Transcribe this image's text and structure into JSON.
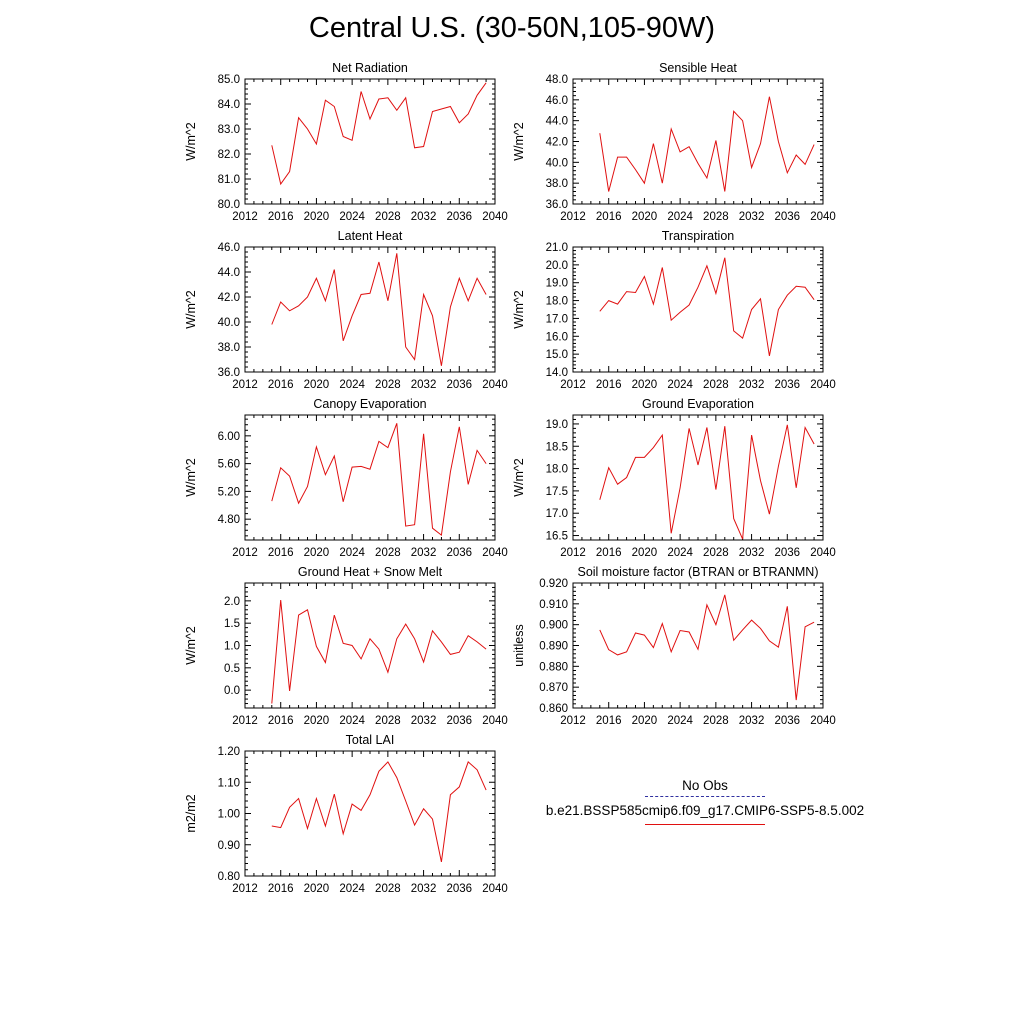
{
  "figure": {
    "title": "Central U.S. (30-50N,105-90W)"
  },
  "legend": {
    "obs_label": "No Obs",
    "series_label": "b.e21.BSSP585cmip6.f09_g17.CMIP6-SSP5-8.5.002",
    "obs_color": "#3030a0",
    "series_color": "#e01010"
  },
  "chart_data": [
    {
      "type": "line",
      "title": "Net Radiation",
      "ylabel": "W/m^2",
      "xlim": [
        2012,
        2040
      ],
      "ylim": [
        80.0,
        85.0
      ],
      "xticks": [
        "2012",
        "2016",
        "2020",
        "2024",
        "2028",
        "2032",
        "2036",
        "2040"
      ],
      "yticks": [
        "80.0",
        "81.0",
        "82.0",
        "83.0",
        "84.0",
        "85.0"
      ],
      "x": [
        2015,
        2016,
        2017,
        2018,
        2019,
        2020,
        2021,
        2022,
        2023,
        2024,
        2025,
        2026,
        2027,
        2028,
        2029,
        2030,
        2031,
        2032,
        2033,
        2034,
        2035,
        2036,
        2037,
        2038,
        2039
      ],
      "y": [
        82.35,
        80.8,
        81.3,
        83.45,
        83.0,
        82.4,
        84.15,
        83.9,
        82.7,
        82.55,
        84.5,
        83.4,
        84.2,
        84.25,
        83.75,
        84.25,
        82.25,
        82.3,
        83.7,
        83.8,
        83.9,
        83.25,
        83.6,
        84.35,
        84.85
      ],
      "color": "#e01010"
    },
    {
      "type": "line",
      "title": "Sensible Heat",
      "ylabel": "W/m^2",
      "xlim": [
        2012,
        2040
      ],
      "ylim": [
        36.0,
        48.0
      ],
      "xticks": [
        "2012",
        "2016",
        "2020",
        "2024",
        "2028",
        "2032",
        "2036",
        "2040"
      ],
      "yticks": [
        "36.0",
        "38.0",
        "40.0",
        "42.0",
        "44.0",
        "46.0",
        "48.0"
      ],
      "x": [
        2015,
        2016,
        2017,
        2018,
        2019,
        2020,
        2021,
        2022,
        2023,
        2024,
        2025,
        2026,
        2027,
        2028,
        2029,
        2030,
        2031,
        2032,
        2033,
        2034,
        2035,
        2036,
        2037,
        2038,
        2039
      ],
      "y": [
        42.8,
        37.2,
        40.5,
        40.5,
        39.3,
        38.0,
        41.8,
        38.0,
        43.2,
        41.0,
        41.5,
        39.9,
        38.5,
        42.1,
        37.2,
        44.9,
        44.0,
        39.5,
        41.8,
        46.3,
        42.0,
        39.0,
        40.7,
        39.8,
        41.7
      ],
      "color": "#e01010"
    },
    {
      "type": "line",
      "title": "Latent Heat",
      "ylabel": "W/m^2",
      "xlim": [
        2012,
        2040
      ],
      "ylim": [
        36.0,
        46.0
      ],
      "xticks": [
        "2012",
        "2016",
        "2020",
        "2024",
        "2028",
        "2032",
        "2036",
        "2040"
      ],
      "yticks": [
        "36.0",
        "38.0",
        "40.0",
        "42.0",
        "44.0",
        "46.0"
      ],
      "x": [
        2015,
        2016,
        2017,
        2018,
        2019,
        2020,
        2021,
        2022,
        2023,
        2024,
        2025,
        2026,
        2027,
        2028,
        2029,
        2030,
        2031,
        2032,
        2033,
        2034,
        2035,
        2036,
        2037,
        2038,
        2039
      ],
      "y": [
        39.8,
        41.6,
        40.9,
        41.3,
        42.0,
        43.5,
        41.7,
        44.2,
        38.5,
        40.5,
        42.2,
        42.3,
        44.8,
        41.7,
        45.5,
        38.0,
        37.0,
        42.2,
        40.5,
        36.5,
        41.2,
        43.5,
        41.7,
        43.5,
        42.2
      ],
      "color": "#e01010"
    },
    {
      "type": "line",
      "title": "Transpiration",
      "ylabel": "W/m^2",
      "xlim": [
        2012,
        2040
      ],
      "ylim": [
        14.0,
        21.0
      ],
      "xticks": [
        "2012",
        "2016",
        "2020",
        "2024",
        "2028",
        "2032",
        "2036",
        "2040"
      ],
      "yticks": [
        "14.0",
        "15.0",
        "16.0",
        "17.0",
        "18.0",
        "19.0",
        "20.0",
        "21.0"
      ],
      "x": [
        2015,
        2016,
        2017,
        2018,
        2019,
        2020,
        2021,
        2022,
        2023,
        2024,
        2025,
        2026,
        2027,
        2028,
        2029,
        2030,
        2031,
        2032,
        2033,
        2034,
        2035,
        2036,
        2037,
        2038,
        2039
      ],
      "y": [
        17.4,
        18.0,
        17.8,
        18.5,
        18.45,
        19.35,
        17.8,
        19.85,
        16.9,
        17.35,
        17.75,
        18.75,
        19.95,
        18.4,
        20.4,
        16.3,
        15.9,
        17.5,
        18.1,
        14.9,
        17.5,
        18.3,
        18.8,
        18.75,
        18.05
      ],
      "color": "#e01010"
    },
    {
      "type": "line",
      "title": "Canopy Evaporation",
      "ylabel": "W/m^2",
      "xlim": [
        2012,
        2040
      ],
      "ylim": [
        4.5,
        6.3
      ],
      "xticks": [
        "2012",
        "2016",
        "2020",
        "2024",
        "2028",
        "2032",
        "2036",
        "2040"
      ],
      "yticks": [
        "4.80",
        "5.20",
        "5.60",
        "6.00"
      ],
      "ytick_values": [
        4.8,
        5.2,
        5.6,
        6.0
      ],
      "x": [
        2015,
        2016,
        2017,
        2018,
        2019,
        2020,
        2021,
        2022,
        2023,
        2024,
        2025,
        2026,
        2027,
        2028,
        2029,
        2030,
        2031,
        2032,
        2033,
        2034,
        2035,
        2036,
        2037,
        2038,
        2039
      ],
      "y": [
        5.06,
        5.54,
        5.42,
        5.03,
        5.27,
        5.84,
        5.44,
        5.71,
        5.05,
        5.55,
        5.56,
        5.52,
        5.92,
        5.83,
        6.18,
        4.7,
        4.72,
        6.03,
        4.67,
        4.57,
        5.48,
        6.13,
        5.3,
        5.79,
        5.6
      ],
      "color": "#e01010"
    },
    {
      "type": "line",
      "title": "Ground Evaporation",
      "ylabel": "W/m^2",
      "xlim": [
        2012,
        2040
      ],
      "ylim": [
        16.4,
        19.2
      ],
      "xticks": [
        "2012",
        "2016",
        "2020",
        "2024",
        "2028",
        "2032",
        "2036",
        "2040"
      ],
      "yticks": [
        "16.5",
        "17.0",
        "17.5",
        "18.0",
        "18.5",
        "19.0"
      ],
      "ytick_values": [
        16.5,
        17.0,
        17.5,
        18.0,
        18.5,
        19.0
      ],
      "x": [
        2015,
        2016,
        2017,
        2018,
        2019,
        2020,
        2021,
        2022,
        2023,
        2024,
        2025,
        2026,
        2027,
        2028,
        2029,
        2030,
        2031,
        2032,
        2033,
        2034,
        2035,
        2036,
        2037,
        2038,
        2039
      ],
      "y": [
        17.3,
        18.02,
        17.65,
        17.8,
        18.25,
        18.25,
        18.47,
        18.75,
        16.55,
        17.57,
        18.9,
        18.08,
        18.92,
        17.53,
        18.95,
        16.88,
        16.42,
        18.75,
        17.73,
        16.98,
        18.05,
        18.98,
        17.57,
        18.92,
        18.55
      ],
      "color": "#e01010"
    },
    {
      "type": "line",
      "title": "Ground Heat + Snow Melt",
      "ylabel": "W/m^2",
      "xlim": [
        2012,
        2040
      ],
      "ylim": [
        -0.4,
        2.4
      ],
      "xticks": [
        "2012",
        "2016",
        "2020",
        "2024",
        "2028",
        "2032",
        "2036",
        "2040"
      ],
      "yticks": [
        "0.0",
        "0.5",
        "1.0",
        "1.5",
        "2.0"
      ],
      "ytick_values": [
        0.0,
        0.5,
        1.0,
        1.5,
        2.0
      ],
      "x": [
        2015,
        2016,
        2017,
        2018,
        2019,
        2020,
        2021,
        2022,
        2023,
        2024,
        2025,
        2026,
        2027,
        2028,
        2029,
        2030,
        2031,
        2032,
        2033,
        2034,
        2035,
        2036,
        2037,
        2038,
        2039
      ],
      "y": [
        -0.3,
        2.02,
        -0.02,
        1.68,
        1.8,
        0.98,
        0.62,
        1.68,
        1.05,
        1.0,
        0.7,
        1.15,
        0.92,
        0.4,
        1.15,
        1.48,
        1.15,
        0.63,
        1.33,
        1.08,
        0.8,
        0.85,
        1.22,
        1.08,
        0.92
      ],
      "color": "#e01010"
    },
    {
      "type": "line",
      "title": "Soil moisture factor (BTRAN or BTRANMN)",
      "ylabel": "unitless",
      "xlim": [
        2012,
        2040
      ],
      "ylim": [
        0.86,
        0.92
      ],
      "xticks": [
        "2012",
        "2016",
        "2020",
        "2024",
        "2028",
        "2032",
        "2036",
        "2040"
      ],
      "yticks": [
        "0.860",
        "0.870",
        "0.880",
        "0.890",
        "0.900",
        "0.910",
        "0.920"
      ],
      "x": [
        2015,
        2016,
        2017,
        2018,
        2019,
        2020,
        2021,
        2022,
        2023,
        2024,
        2025,
        2026,
        2027,
        2028,
        2029,
        2030,
        2031,
        2032,
        2033,
        2034,
        2035,
        2036,
        2037,
        2038,
        2039
      ],
      "y": [
        0.8975,
        0.888,
        0.8855,
        0.887,
        0.896,
        0.895,
        0.889,
        0.9005,
        0.887,
        0.8972,
        0.8965,
        0.8882,
        0.9095,
        0.9,
        0.9143,
        0.8925,
        0.8975,
        0.9022,
        0.8982,
        0.8922,
        0.8892,
        0.9088,
        0.8638,
        0.899,
        0.9012
      ],
      "color": "#e01010"
    },
    {
      "type": "line",
      "title": "Total LAI",
      "ylabel": "m2/m2",
      "xlim": [
        2012,
        2040
      ],
      "ylim": [
        0.8,
        1.2
      ],
      "xticks": [
        "2012",
        "2016",
        "2020",
        "2024",
        "2028",
        "2032",
        "2036",
        "2040"
      ],
      "yticks": [
        "0.80",
        "0.90",
        "1.00",
        "1.10",
        "1.20"
      ],
      "x": [
        2015,
        2016,
        2017,
        2018,
        2019,
        2020,
        2021,
        2022,
        2023,
        2024,
        2025,
        2026,
        2027,
        2028,
        2029,
        2030,
        2031,
        2032,
        2033,
        2034,
        2035,
        2036,
        2037,
        2038,
        2039
      ],
      "y": [
        0.96,
        0.955,
        1.02,
        1.048,
        0.952,
        1.048,
        0.96,
        1.062,
        0.935,
        1.03,
        1.01,
        1.06,
        1.135,
        1.165,
        1.115,
        1.04,
        0.963,
        1.015,
        0.982,
        0.845,
        1.06,
        1.085,
        1.165,
        1.14,
        1.075
      ],
      "color": "#e01010"
    }
  ]
}
